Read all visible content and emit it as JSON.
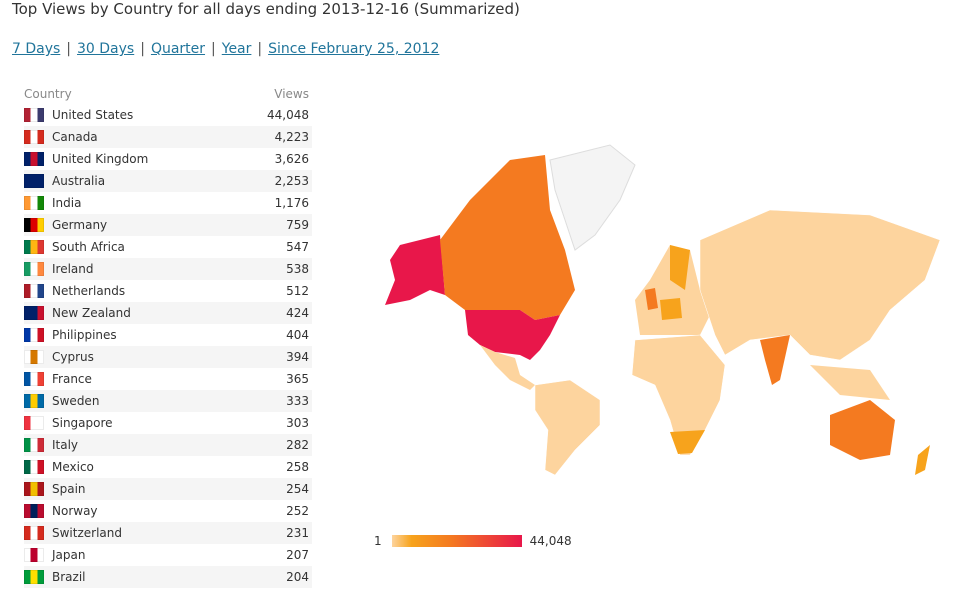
{
  "title": "Top Views by Country for all days ending 2013-12-16 (Summarized)",
  "links": [
    "7 Days",
    "30 Days",
    "Quarter",
    "Year",
    "Since February 25, 2012"
  ],
  "table": {
    "headers": [
      "Country",
      "Views"
    ],
    "rows": [
      [
        "United States",
        "44,048"
      ],
      [
        "Canada",
        "4,223"
      ],
      [
        "United Kingdom",
        "3,626"
      ],
      [
        "Australia",
        "2,253"
      ],
      [
        "India",
        "1,176"
      ],
      [
        "Germany",
        "759"
      ],
      [
        "South Africa",
        "547"
      ],
      [
        "Ireland",
        "538"
      ],
      [
        "Netherlands",
        "512"
      ],
      [
        "New Zealand",
        "424"
      ],
      [
        "Philippines",
        "404"
      ],
      [
        "Cyprus",
        "394"
      ],
      [
        "France",
        "365"
      ],
      [
        "Sweden",
        "333"
      ],
      [
        "Singapore",
        "303"
      ],
      [
        "Italy",
        "282"
      ],
      [
        "Mexico",
        "258"
      ],
      [
        "Spain",
        "254"
      ],
      [
        "Norway",
        "252"
      ],
      [
        "Switzerland",
        "231"
      ],
      [
        "Japan",
        "207"
      ],
      [
        "Brazil",
        "204"
      ]
    ]
  },
  "legend": {
    "min": "1",
    "max": "44,048"
  }
}
